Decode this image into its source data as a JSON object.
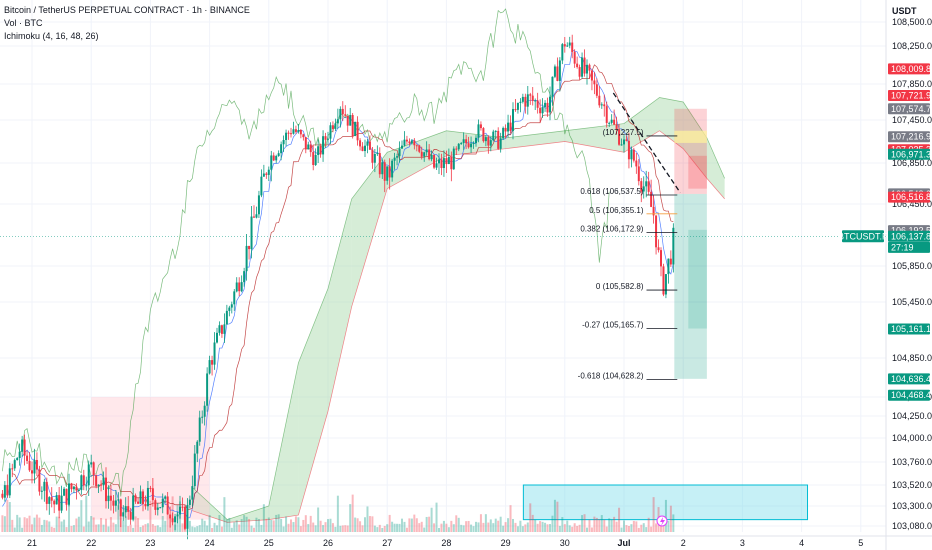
{
  "header": {
    "title": "Bitcoin / TetherUS PERPETUAL CONTRACT · 1h · BINANCE",
    "volume_label": "Vol · BTC",
    "ichimoku_label": "Ichimoku (4, 16, 48, 26)",
    "currency": "USDT"
  },
  "colors": {
    "up": "#089981",
    "down": "#f23645",
    "conversion": "#2962ff",
    "base": "#b71c1c",
    "lagging": "#43a047",
    "cloud_bull": "#a5d6a7",
    "cloud_bear": "#ffcdd2",
    "target_zone": "#80deea",
    "grid": "#f0f3fa"
  },
  "chart_data": {
    "type": "candlestick",
    "symbol": "BTCUSDT.P",
    "timeframe": "1h",
    "x_ticks": [
      "21",
      "22",
      "23",
      "24",
      "25",
      "26",
      "27",
      "28",
      "29",
      "30",
      "Jul",
      "2",
      "3",
      "4",
      "5"
    ],
    "y_ticks": [
      "108,500.0",
      "108,250.0",
      "107,850.0",
      "107,450.0",
      "106,850.0",
      "106,450.0",
      "105,850.0",
      "105,450.0",
      "104,850.0",
      "104,450.0",
      "104,250.0",
      "104,000.0",
      "103,760.0",
      "103,520.0",
      "103,300.0",
      "103,080.0"
    ],
    "ylim": [
      103080,
      108550
    ],
    "anchors": [
      {
        "day": 20.0,
        "price": 104100
      },
      {
        "day": 20.4,
        "price": 103200
      },
      {
        "day": 20.8,
        "price": 103900
      },
      {
        "day": 21.4,
        "price": 103300
      },
      {
        "day": 22.0,
        "price": 103700
      },
      {
        "day": 22.5,
        "price": 103200
      },
      {
        "day": 23.0,
        "price": 103400
      },
      {
        "day": 23.6,
        "price": 103150
      },
      {
        "day": 24.0,
        "price": 104800
      },
      {
        "day": 24.5,
        "price": 105700
      },
      {
        "day": 25.0,
        "price": 106900
      },
      {
        "day": 25.4,
        "price": 107350
      },
      {
        "day": 25.8,
        "price": 106900
      },
      {
        "day": 26.2,
        "price": 107650
      },
      {
        "day": 26.6,
        "price": 107100
      },
      {
        "day": 27.0,
        "price": 106700
      },
      {
        "day": 27.4,
        "price": 107250
      },
      {
        "day": 27.8,
        "price": 106800
      },
      {
        "day": 28.1,
        "price": 106900
      },
      {
        "day": 28.5,
        "price": 107300
      },
      {
        "day": 28.9,
        "price": 107150
      },
      {
        "day": 29.3,
        "price": 107700
      },
      {
        "day": 29.7,
        "price": 107600
      },
      {
        "day": 30.0,
        "price": 108300
      },
      {
        "day": 30.3,
        "price": 108000
      },
      {
        "day": 30.6,
        "price": 107700
      },
      {
        "day": 30.9,
        "price": 107250
      },
      {
        "day": 31.2,
        "price": 106850
      },
      {
        "day": 31.5,
        "price": 106350
      },
      {
        "day": 31.65,
        "price": 105600
      },
      {
        "day": 31.85,
        "price": 106140
      }
    ],
    "ichimoku_cloud": [
      {
        "day": 23.7,
        "a": 103500,
        "b": 103250
      },
      {
        "day": 24.3,
        "a": 103150,
        "b": 103120
      },
      {
        "day": 25.0,
        "a": 103300,
        "b": 103150
      },
      {
        "day": 25.5,
        "a": 104800,
        "b": 103200
      },
      {
        "day": 26.0,
        "a": 105600,
        "b": 104300
      },
      {
        "day": 26.4,
        "a": 106500,
        "b": 105400
      },
      {
        "day": 27.0,
        "a": 107000,
        "b": 106600
      },
      {
        "day": 28.0,
        "a": 107300,
        "b": 106950
      },
      {
        "day": 29.0,
        "a": 107200,
        "b": 107050
      },
      {
        "day": 30.0,
        "a": 107300,
        "b": 107150
      },
      {
        "day": 31.0,
        "a": 107400,
        "b": 107000
      },
      {
        "day": 31.6,
        "a": 107700,
        "b": 107300
      },
      {
        "day": 32.0,
        "a": 107650,
        "b": 107050
      },
      {
        "day": 32.4,
        "a": 107200,
        "b": 106700
      },
      {
        "day": 32.7,
        "a": 106700,
        "b": 106500
      }
    ],
    "fib_levels": [
      {
        "label": "(107,227.5)",
        "price": 107227.5,
        "color": "#131722"
      },
      {
        "label": "0.618 (106,537.5)",
        "price": 106537.5,
        "color": "#131722"
      },
      {
        "label": "0.5 (106,355.1)",
        "price": 106355.1,
        "color": "#f59d3d"
      },
      {
        "label": "0.382 (106,172.9)",
        "price": 106172.9,
        "color": "#131722"
      },
      {
        "label": "0 (105,582.8)",
        "price": 105582.8,
        "color": "#131722"
      },
      {
        "label": "-0.27 (105,165.7)",
        "price": 105165.7,
        "color": "#131722"
      },
      {
        "label": "-0.618 (104,628.2)",
        "price": 104628.2,
        "color": "#131722"
      }
    ],
    "price_labels": [
      {
        "text": "108,009.8",
        "price": 108009.8,
        "color": "#f23645"
      },
      {
        "text": "107,721.9",
        "price": 107721.9,
        "color": "#f23645"
      },
      {
        "text": "107,574.7",
        "price": 107574.7,
        "color": "#787b86"
      },
      {
        "text": "107,216.9",
        "price": 107216.9,
        "color": "#787b86"
      },
      {
        "text": "107,035.3",
        "price": 107035.3,
        "color": "#f23645"
      },
      {
        "text": "106,971.3",
        "price": 106971.3,
        "color": "#089981"
      },
      {
        "text": "106,548.2",
        "price": 106548.2,
        "color": "#787b86"
      },
      {
        "text": "106,516.8",
        "price": 106516.8,
        "color": "#f23645"
      },
      {
        "text": "106,192.5",
        "price": 106192.5,
        "color": "#787b86"
      },
      {
        "text": "106,137.8",
        "price": 106137.8,
        "color": "#089981"
      },
      {
        "text": "27:19",
        "price": 106030,
        "color": "#089981"
      },
      {
        "text": "105,161.1",
        "price": 105161.1,
        "color": "#089981"
      },
      {
        "text": "104,636.4",
        "price": 104636.4,
        "color": "#089981"
      },
      {
        "text": "104,468.4",
        "price": 104468.4,
        "color": "#089981"
      }
    ],
    "current_price_tag": "BTCUSDT.P",
    "current_price": 106137.8,
    "short_position": {
      "entry": 106548.2,
      "stop": 107574.7,
      "target": 104636.4,
      "start_day": 31.85,
      "end_day": 32.4
    },
    "target_zone": {
      "start_day": 29.3,
      "end_day": 34.1,
      "top": 103520,
      "bottom": 103150
    }
  }
}
